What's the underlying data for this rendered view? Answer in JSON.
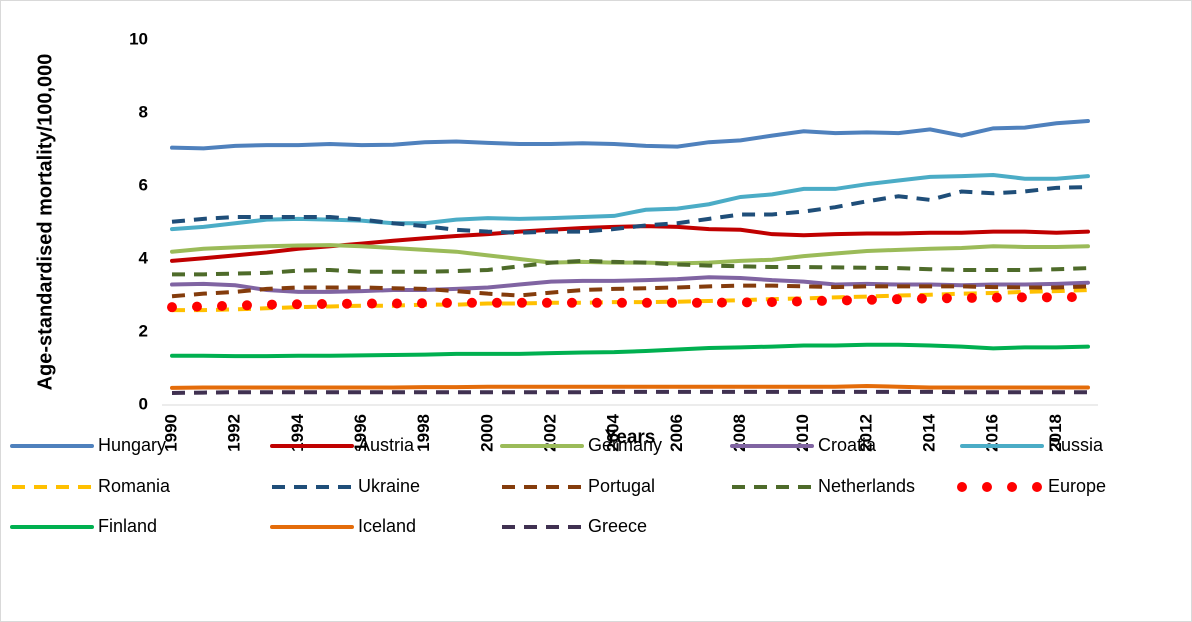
{
  "chart_data": {
    "type": "line",
    "y_label": "Age-standardised mortality/100,000",
    "x_label": "Years",
    "x": [
      1990,
      1991,
      1992,
      1993,
      1994,
      1995,
      1996,
      1997,
      1998,
      1999,
      2000,
      2001,
      2002,
      2003,
      2004,
      2005,
      2006,
      2007,
      2008,
      2009,
      2010,
      2011,
      2012,
      2013,
      2014,
      2015,
      2016,
      2017,
      2018,
      2019
    ],
    "xlim": [
      1990,
      2019
    ],
    "xticks": [
      1990,
      1992,
      1994,
      1996,
      1998,
      2000,
      2002,
      2004,
      2006,
      2008,
      2010,
      2012,
      2014,
      2016,
      2018
    ],
    "ylim": [
      0,
      10
    ],
    "yticks": [
      0,
      2,
      4,
      6,
      8,
      10
    ],
    "series": [
      {
        "name": "Hungary",
        "color": "#4f81bd",
        "style": "solid",
        "values": [
          7.05,
          7.03,
          7.1,
          7.12,
          7.12,
          7.15,
          7.12,
          7.13,
          7.2,
          7.22,
          7.18,
          7.15,
          7.15,
          7.17,
          7.15,
          7.1,
          7.08,
          7.2,
          7.25,
          7.38,
          7.5,
          7.45,
          7.47,
          7.45,
          7.55,
          7.38,
          7.58,
          7.6,
          7.72,
          7.78
        ]
      },
      {
        "name": "Austria",
        "color": "#c00000",
        "style": "solid",
        "values": [
          3.95,
          4.02,
          4.1,
          4.18,
          4.28,
          4.35,
          4.42,
          4.5,
          4.57,
          4.63,
          4.68,
          4.75,
          4.8,
          4.85,
          4.88,
          4.9,
          4.88,
          4.82,
          4.8,
          4.68,
          4.65,
          4.68,
          4.7,
          4.7,
          4.72,
          4.72,
          4.75,
          4.75,
          4.72,
          4.75
        ]
      },
      {
        "name": "Germany",
        "color": "#9bbb59",
        "style": "solid",
        "values": [
          4.2,
          4.28,
          4.32,
          4.35,
          4.37,
          4.38,
          4.35,
          4.3,
          4.25,
          4.2,
          4.1,
          4.0,
          3.9,
          3.92,
          3.9,
          3.9,
          3.88,
          3.9,
          3.95,
          3.98,
          4.08,
          4.15,
          4.22,
          4.25,
          4.28,
          4.3,
          4.35,
          4.33,
          4.33,
          4.35
        ]
      },
      {
        "name": "Croatia",
        "color": "#8064a2",
        "style": "solid",
        "values": [
          3.3,
          3.32,
          3.28,
          3.15,
          3.1,
          3.1,
          3.12,
          3.15,
          3.15,
          3.18,
          3.22,
          3.3,
          3.38,
          3.4,
          3.4,
          3.42,
          3.45,
          3.5,
          3.48,
          3.42,
          3.38,
          3.3,
          3.32,
          3.3,
          3.3,
          3.28,
          3.3,
          3.3,
          3.32,
          3.35
        ]
      },
      {
        "name": "Russia",
        "color": "#4bacc6",
        "style": "solid",
        "values": [
          4.82,
          4.88,
          4.98,
          5.08,
          5.1,
          5.08,
          5.05,
          4.98,
          4.98,
          5.08,
          5.12,
          5.1,
          5.12,
          5.15,
          5.18,
          5.35,
          5.38,
          5.5,
          5.7,
          5.77,
          5.92,
          5.92,
          6.05,
          6.15,
          6.25,
          6.27,
          6.3,
          6.2,
          6.2,
          6.27
        ]
      },
      {
        "name": "Romania",
        "color": "#ffc000",
        "style": "dashed",
        "values": [
          2.6,
          2.6,
          2.62,
          2.65,
          2.68,
          2.7,
          2.72,
          2.72,
          2.75,
          2.75,
          2.78,
          2.78,
          2.8,
          2.8,
          2.82,
          2.82,
          2.83,
          2.85,
          2.87,
          2.9,
          2.92,
          2.95,
          2.97,
          3.0,
          3.02,
          3.05,
          3.07,
          3.1,
          3.12,
          3.15
        ]
      },
      {
        "name": "Ukraine",
        "color": "#1f4e79",
        "style": "dashed",
        "values": [
          5.02,
          5.1,
          5.15,
          5.15,
          5.15,
          5.15,
          5.08,
          4.98,
          4.9,
          4.8,
          4.75,
          4.72,
          4.75,
          4.75,
          4.82,
          4.92,
          4.98,
          5.1,
          5.22,
          5.22,
          5.3,
          5.42,
          5.58,
          5.72,
          5.62,
          5.85,
          5.8,
          5.85,
          5.95,
          5.97
        ]
      },
      {
        "name": "Portugal",
        "color": "#843c0c",
        "style": "dashed",
        "values": [
          2.98,
          3.05,
          3.1,
          3.18,
          3.22,
          3.22,
          3.22,
          3.2,
          3.18,
          3.12,
          3.05,
          3.0,
          3.08,
          3.15,
          3.18,
          3.2,
          3.22,
          3.25,
          3.27,
          3.27,
          3.25,
          3.23,
          3.25,
          3.25,
          3.25,
          3.25,
          3.23,
          3.22,
          3.22,
          3.25
        ]
      },
      {
        "name": "Netherlands",
        "color": "#4e6b2a",
        "style": "dashed",
        "values": [
          3.58,
          3.58,
          3.6,
          3.62,
          3.68,
          3.7,
          3.65,
          3.65,
          3.65,
          3.67,
          3.7,
          3.8,
          3.9,
          3.95,
          3.92,
          3.9,
          3.85,
          3.82,
          3.8,
          3.78,
          3.78,
          3.77,
          3.76,
          3.75,
          3.72,
          3.7,
          3.7,
          3.7,
          3.72,
          3.75
        ]
      },
      {
        "name": "Europe",
        "color": "#ff0000",
        "style": "dotted",
        "values": [
          2.68,
          2.7,
          2.72,
          2.75,
          2.76,
          2.77,
          2.78,
          2.78,
          2.79,
          2.8,
          2.8,
          2.8,
          2.8,
          2.8,
          2.8,
          2.8,
          2.8,
          2.8,
          2.81,
          2.82,
          2.84,
          2.86,
          2.88,
          2.9,
          2.92,
          2.93,
          2.94,
          2.95,
          2.95,
          2.96
        ]
      },
      {
        "name": "Finland",
        "color": "#00b050",
        "style": "solid",
        "values": [
          1.35,
          1.35,
          1.34,
          1.34,
          1.35,
          1.35,
          1.36,
          1.37,
          1.38,
          1.4,
          1.4,
          1.4,
          1.42,
          1.44,
          1.45,
          1.48,
          1.52,
          1.56,
          1.58,
          1.6,
          1.63,
          1.63,
          1.65,
          1.65,
          1.63,
          1.6,
          1.55,
          1.58,
          1.58,
          1.6
        ]
      },
      {
        "name": "Iceland",
        "color": "#e46c0a",
        "style": "solid",
        "values": [
          0.47,
          0.48,
          0.48,
          0.48,
          0.48,
          0.48,
          0.48,
          0.48,
          0.49,
          0.49,
          0.5,
          0.5,
          0.5,
          0.5,
          0.5,
          0.5,
          0.5,
          0.5,
          0.5,
          0.5,
          0.5,
          0.5,
          0.52,
          0.5,
          0.48,
          0.48,
          0.48,
          0.48,
          0.48,
          0.48
        ]
      },
      {
        "name": "Greece",
        "color": "#403151",
        "style": "dashed",
        "values": [
          0.33,
          0.34,
          0.35,
          0.35,
          0.35,
          0.35,
          0.35,
          0.35,
          0.35,
          0.35,
          0.35,
          0.35,
          0.35,
          0.35,
          0.36,
          0.36,
          0.36,
          0.36,
          0.36,
          0.36,
          0.36,
          0.36,
          0.36,
          0.36,
          0.36,
          0.35,
          0.35,
          0.35,
          0.35,
          0.35
        ]
      }
    ]
  }
}
